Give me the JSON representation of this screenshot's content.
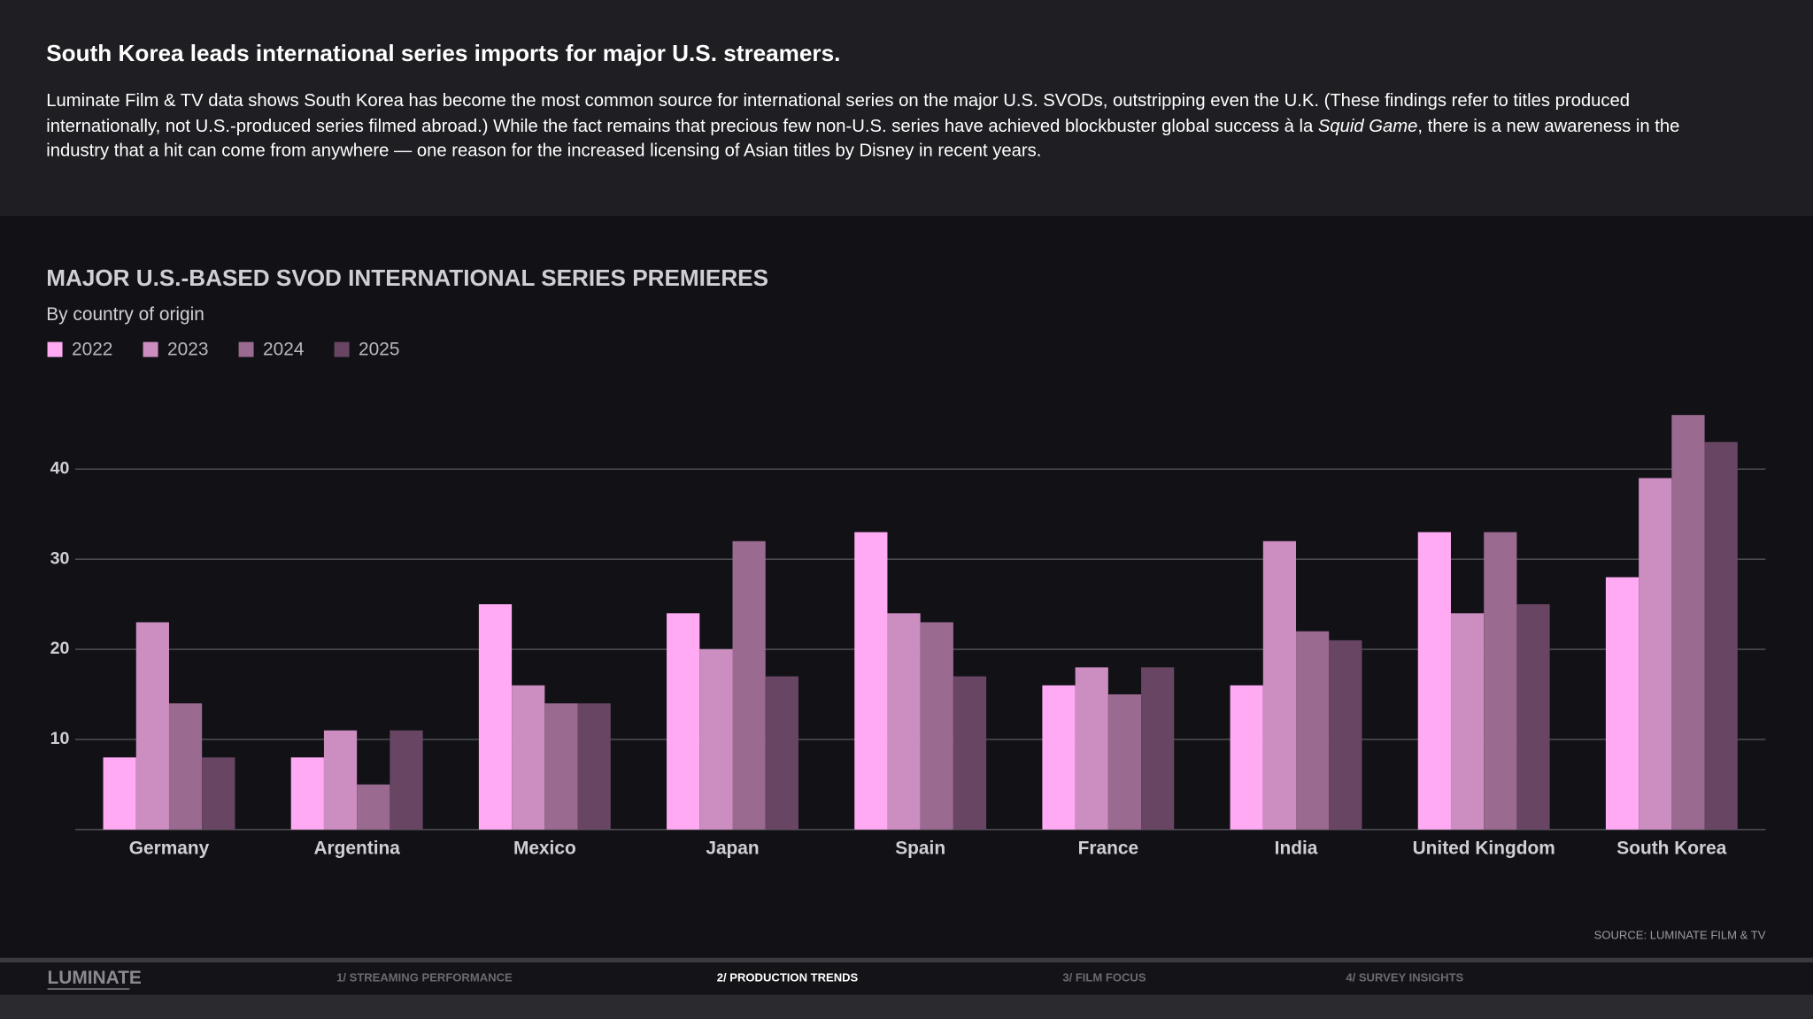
{
  "header": {
    "title": "South Korea leads international series imports for major U.S. streamers.",
    "description": [
      "Luminate Film & TV data shows South Korea has become the most common source for international series on the major U.S. SVODs, outstripping even the U.K. (These findings refer to titles produced internationally, not U.S.-produced series filmed abroad.) While the fact remains that precious few non-U.S. series have achieved blockbuster global success à la ",
      "Squid Game",
      ", there is a new awareness in the industry that a hit can come from anywhere — one reason for the increased licensing of Asian titles by Disney in recent years."
    ]
  },
  "chart_data": {
    "type": "bar",
    "title": "MAJOR U.S.-BASED SVOD INTERNATIONAL SERIES PREMIERES",
    "subtitle": "By country of origin",
    "categories": [
      "Germany",
      "Argentina",
      "Mexico",
      "Japan",
      "Spain",
      "France",
      "India",
      "United Kingdom",
      "South Korea"
    ],
    "series": [
      {
        "name": "2022",
        "color": "#ffaaf2",
        "values": [
          8,
          8,
          25,
          24,
          33,
          16,
          16,
          33,
          28
        ]
      },
      {
        "name": "2023",
        "color": "#cc8dc1",
        "values": [
          23,
          11,
          16,
          20,
          24,
          18,
          32,
          24,
          39
        ]
      },
      {
        "name": "2024",
        "color": "#9a6a90",
        "values": [
          14,
          5,
          14,
          32,
          23,
          15,
          22,
          33,
          46
        ]
      },
      {
        "name": "2025",
        "color": "#684663",
        "values": [
          8,
          11,
          14,
          17,
          17,
          18,
          21,
          25,
          43
        ]
      }
    ],
    "ylim": [
      0,
      48
    ],
    "yticks": [
      10,
      20,
      30,
      40
    ],
    "grid": true,
    "legend": "top-left",
    "source": "SOURCE: LUMINATE FILM & TV"
  },
  "nav": {
    "logo": "LUMINATE",
    "tabs": [
      "1/ STREAMING PERFORMANCE",
      "2/ PRODUCTION TRENDS",
      "3/ FILM FOCUS",
      "4/ SURVEY INSIGHTS"
    ],
    "active": 1
  }
}
